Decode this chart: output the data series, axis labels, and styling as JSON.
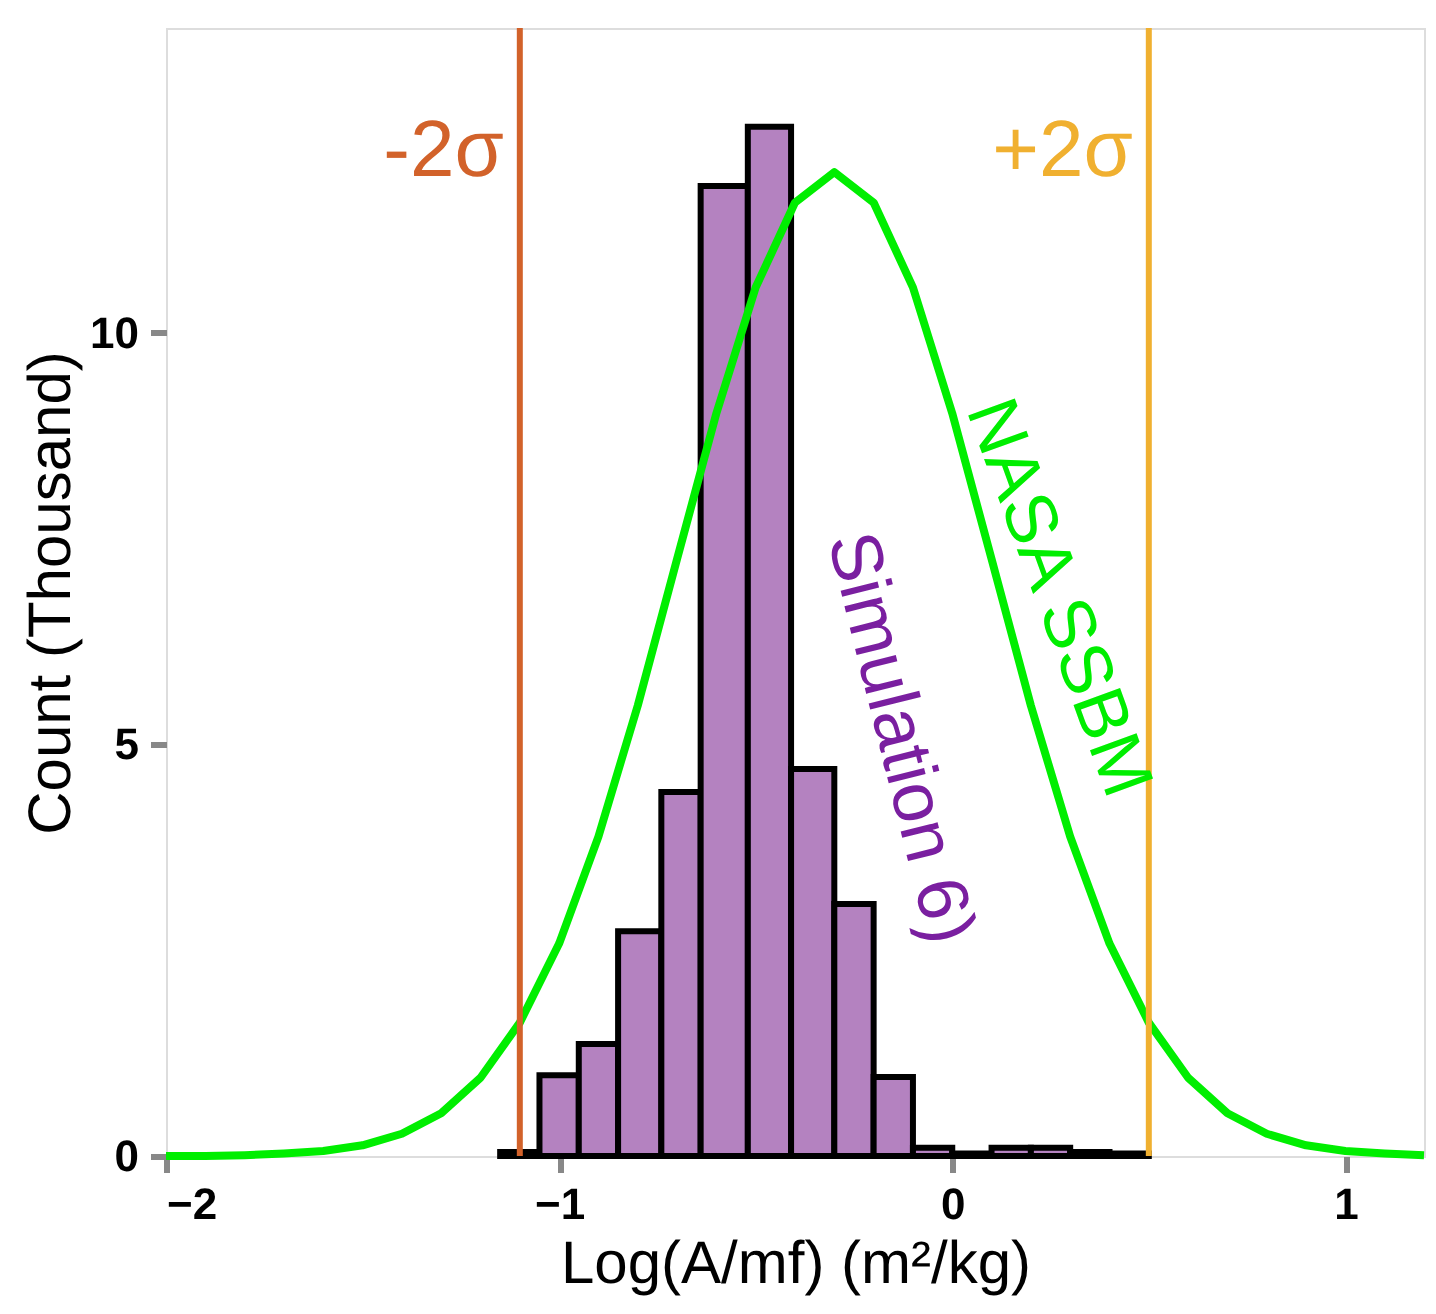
{
  "chart_data": {
    "type": "histogram",
    "xlabel": "Log(A/mf) (m²/kg)",
    "ylabel": "Count (Thousand)",
    "xlim": [
      -2,
      1.2
    ],
    "ylim": [
      0,
      13.7
    ],
    "xticks": [
      -2,
      -1,
      0,
      1
    ],
    "yticks": [
      0,
      5,
      10
    ],
    "grid": false,
    "bins": [
      -1.15,
      -1.05,
      -0.95,
      -0.85,
      -0.74,
      -0.64,
      -0.52,
      -0.41,
      -0.3,
      -0.2,
      -0.1,
      0,
      0.1,
      0.2,
      0.3,
      0.4,
      0.5
    ],
    "series": [
      {
        "color": "#b482c0",
        "values": [
          0.05,
          0.98,
          1.36,
          2.73,
          4.42,
          11.78,
          12.5,
          4.7,
          3.06,
          0.96,
          0.1,
          0.03,
          0.1,
          0.1,
          0.05,
          0.03
        ]
      },
      {
        "type": "line",
        "color": "#00ee00",
        "x": [
          -2,
          -1.9,
          -1.8,
          -1.7,
          -1.6,
          -1.5,
          -1.4,
          -1.3,
          -1.2,
          -1.1,
          -1.0,
          -0.9,
          -0.8,
          -0.7,
          -0.6,
          -0.5,
          -0.4,
          -0.3,
          -0.2,
          -0.1,
          0,
          0.1,
          0.2,
          0.3,
          0.4,
          0.5,
          0.6,
          0.7,
          0.8,
          0.9,
          1.0,
          1.1,
          1.2
        ],
        "values": [
          0.0,
          0.0,
          0.01,
          0.03,
          0.06,
          0.13,
          0.27,
          0.52,
          0.95,
          1.62,
          2.58,
          3.88,
          5.47,
          7.25,
          9.02,
          10.55,
          11.58,
          11.95,
          11.58,
          10.55,
          9.02,
          7.25,
          5.47,
          3.88,
          2.58,
          1.62,
          0.95,
          0.52,
          0.27,
          0.13,
          0.06,
          0.03,
          0.01
        ]
      }
    ],
    "ref_lines": [
      {
        "axis": "x",
        "value": -1.1,
        "label": "-2σ",
        "color": "#d2622a"
      },
      {
        "axis": "x",
        "value": 0.5,
        "label": "+2σ",
        "color": "#f0b030"
      }
    ],
    "annotations": [
      "NASA SSBM",
      "Simulation 6)"
    ]
  }
}
